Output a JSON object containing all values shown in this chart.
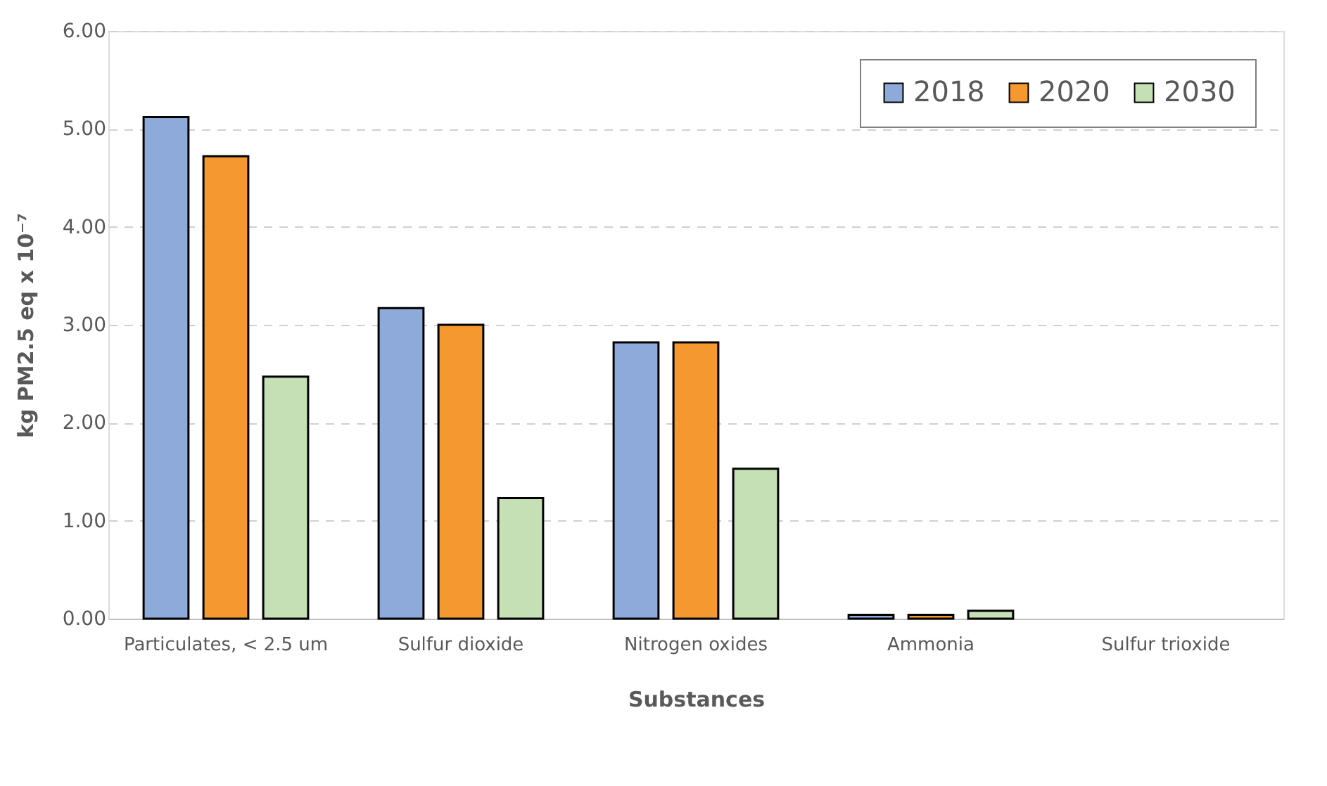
{
  "chart_data": {
    "type": "bar",
    "xlabel": "Substances",
    "ylabel": "kg PM2.5 eq x 10⁻⁷",
    "categories": [
      "Particulates, < 2.5 um",
      "Sulfur dioxide",
      "Nitrogen oxides",
      "Ammonia",
      "Sulfur trioxide"
    ],
    "series": [
      {
        "name": "2018",
        "color": "#8eaadb",
        "values": [
          5.12,
          3.17,
          2.82,
          0.04,
          null
        ]
      },
      {
        "name": "2020",
        "color": "#f4982f",
        "values": [
          4.72,
          3.0,
          2.82,
          0.04,
          null
        ]
      },
      {
        "name": "2030",
        "color": "#c5e0b4",
        "values": [
          2.47,
          1.23,
          1.53,
          0.08,
          null
        ]
      }
    ],
    "ylim": [
      0,
      6
    ],
    "yticks": [
      {
        "value": 0,
        "label": "0.00"
      },
      {
        "value": 1,
        "label": "1.00"
      },
      {
        "value": 2,
        "label": "2.00"
      },
      {
        "value": 3,
        "label": "3.00"
      },
      {
        "value": 4,
        "label": "4.00"
      },
      {
        "value": 5,
        "label": "5.00"
      },
      {
        "value": 6,
        "label": "6.00"
      }
    ],
    "grid": "y",
    "legend": "top right"
  }
}
